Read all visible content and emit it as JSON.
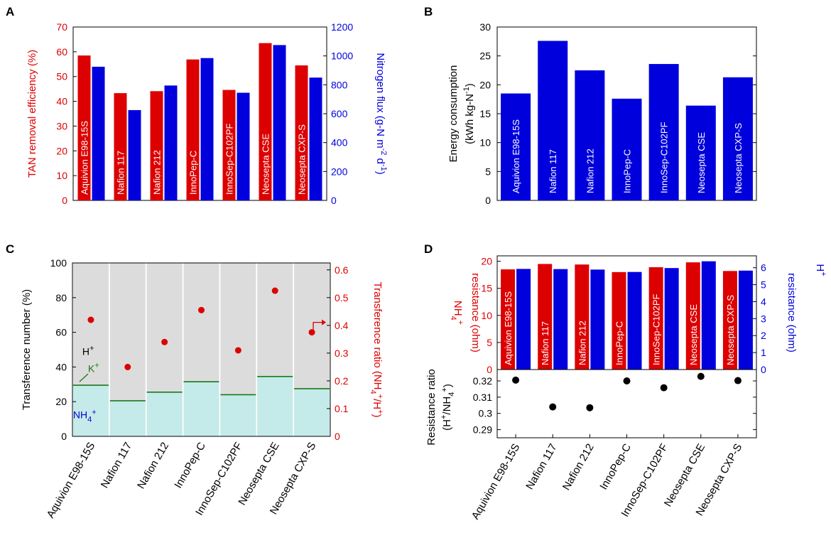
{
  "colors": {
    "red": "#dd0000",
    "blue": "#0000dd",
    "green": "#1a7a1a",
    "gray": "#dcdcdc",
    "cyan": "#c5eaea",
    "black": "#000000"
  },
  "categories": [
    "Aquivion E98-15S",
    "Nafion 117",
    "Nafion 212",
    "InnoPep-C",
    "InnoSep-C102PF",
    "Neosepta CSE",
    "Neosepta CXP-S"
  ],
  "chart_data": [
    {
      "panel": "A",
      "type": "bar",
      "categories": [
        "Aquivion E98-15S",
        "Nafion 117",
        "Nafion 212",
        "InnoPep-C",
        "InnoSep-C102PF",
        "Neosepta CSE",
        "Neosepta CXP-S"
      ],
      "series": [
        {
          "name": "TAN removal efficiency (%)",
          "axis": "left",
          "color": "#dd0000",
          "values": [
            58.5,
            43.3,
            44.1,
            56.9,
            44.6,
            63.5,
            54.5
          ]
        },
        {
          "name": "Nitrogen flux",
          "axis": "right",
          "color": "#0000dd",
          "values": [
            925,
            625,
            795,
            985,
            745,
            1075,
            850
          ]
        }
      ],
      "ylabel_left": "TAN removal efficiency (%)",
      "ylabel_right": "Nitrogen flux (g-N m-2 d-1)",
      "ylim_left": [
        0,
        70
      ],
      "yticks_left": [
        "0",
        "10",
        "20",
        "30",
        "40",
        "50",
        "60",
        "70"
      ],
      "ylim_right": [
        0,
        1200
      ],
      "yticks_right": [
        "0",
        "200",
        "400",
        "600",
        "800",
        "1000",
        "1200"
      ]
    },
    {
      "panel": "B",
      "type": "bar",
      "categories": [
        "Aquivion E98-15S",
        "Nafion 117",
        "Nafion 212",
        "InnoPep-C",
        "InnoSep-C102PF",
        "Neosepta CSE",
        "Neosepta CXP-S"
      ],
      "values": [
        18.5,
        27.6,
        22.5,
        17.6,
        23.6,
        16.4,
        21.3
      ],
      "ylabel_line1": "Energy  consumption",
      "ylabel_line2": "(kWh kg-N-1)",
      "ylim": [
        0,
        30
      ],
      "yticks": [
        "0",
        "5",
        "10",
        "15",
        "20",
        "25",
        "30"
      ]
    },
    {
      "panel": "C",
      "type": "bar",
      "categories": [
        "Aquivion E98-15S",
        "Nafion 117",
        "Nafion 212",
        "InnoPep-C",
        "InnoSep-C102PF",
        "Neosepta CSE",
        "Neosepta CXP-S"
      ],
      "series": [
        {
          "name": "NH4+ transference number (%)",
          "axis": "left",
          "values": [
            29.5,
            20.5,
            25.5,
            31.5,
            24,
            34.5,
            27.5
          ]
        },
        {
          "name": "K+ transference number (%)",
          "axis": "left",
          "values": [
            0.5,
            0.3,
            0.3,
            0.3,
            0.3,
            0.3,
            0.3
          ]
        },
        {
          "name": "H+ transference number (%)",
          "axis": "left",
          "values": [
            70,
            79.2,
            74.2,
            68.2,
            75.7,
            65.2,
            72.2
          ]
        },
        {
          "name": "Transference ratio (NH4+/H+)",
          "axis": "right",
          "type": "scatter",
          "values": [
            0.42,
            0.25,
            0.34,
            0.455,
            0.31,
            0.525,
            0.375
          ]
        }
      ],
      "ylabel_left": "Transference number (%)",
      "ylabel_right": "Transference ratio (NH4+/H+)",
      "ylim_left": [
        0,
        100
      ],
      "yticks_left": [
        "0",
        "20",
        "40",
        "60",
        "80",
        "100"
      ],
      "ylim_right": [
        0,
        0.625
      ],
      "yticks_right": [
        "0",
        "0.1",
        "0.2",
        "0.3",
        "0.4",
        "0.5",
        "0.6"
      ],
      "annotations": [
        "H+",
        "K+",
        "NH4+"
      ]
    },
    {
      "panel": "D-top",
      "type": "bar",
      "categories": [
        "Aquivion E98-15S",
        "Nafion 117",
        "Nafion 212",
        "InnoPep-C",
        "InnoSep-C102PF",
        "Neosepta CSE",
        "Neosepta CXP-S"
      ],
      "series": [
        {
          "name": "NH4+ resistance (ohm)",
          "axis": "left",
          "color": "#dd0000",
          "values": [
            18.5,
            19.5,
            19.4,
            18.0,
            18.9,
            19.8,
            18.2
          ]
        },
        {
          "name": "H+ resistance (ohm)",
          "axis": "right",
          "color": "#0000dd",
          "values": [
            5.93,
            5.92,
            5.89,
            5.75,
            5.98,
            6.38,
            5.83
          ]
        }
      ],
      "ylabel_left": "NH4+ resistance (ohm)",
      "ylabel_right": "H+ resistance (ohm)",
      "ylim_left": [
        0,
        21
      ],
      "yticks_left": [
        "0",
        "5",
        "10",
        "15",
        "20"
      ],
      "ylim_right": [
        0,
        6.7
      ],
      "yticks_right": [
        "0",
        "1",
        "2",
        "3",
        "4",
        "5",
        "6"
      ]
    },
    {
      "panel": "D-bottom",
      "type": "scatter",
      "categories": [
        "Aquivion E98-15S",
        "Nafion 117",
        "Nafion 212",
        "InnoPep-C",
        "InnoSep-C102PF",
        "Neosepta CSE",
        "Neosepta CXP-S"
      ],
      "values": [
        0.3205,
        0.304,
        0.3035,
        0.32,
        0.3158,
        0.3228,
        0.3202
      ],
      "ylabel_line1": "Resistance ratio",
      "ylabel_line2": "(H+/NH4+)",
      "ylim": [
        0.285,
        0.327
      ],
      "yticks": [
        "0.29",
        "0.3",
        "0.31",
        "0.32"
      ]
    }
  ]
}
